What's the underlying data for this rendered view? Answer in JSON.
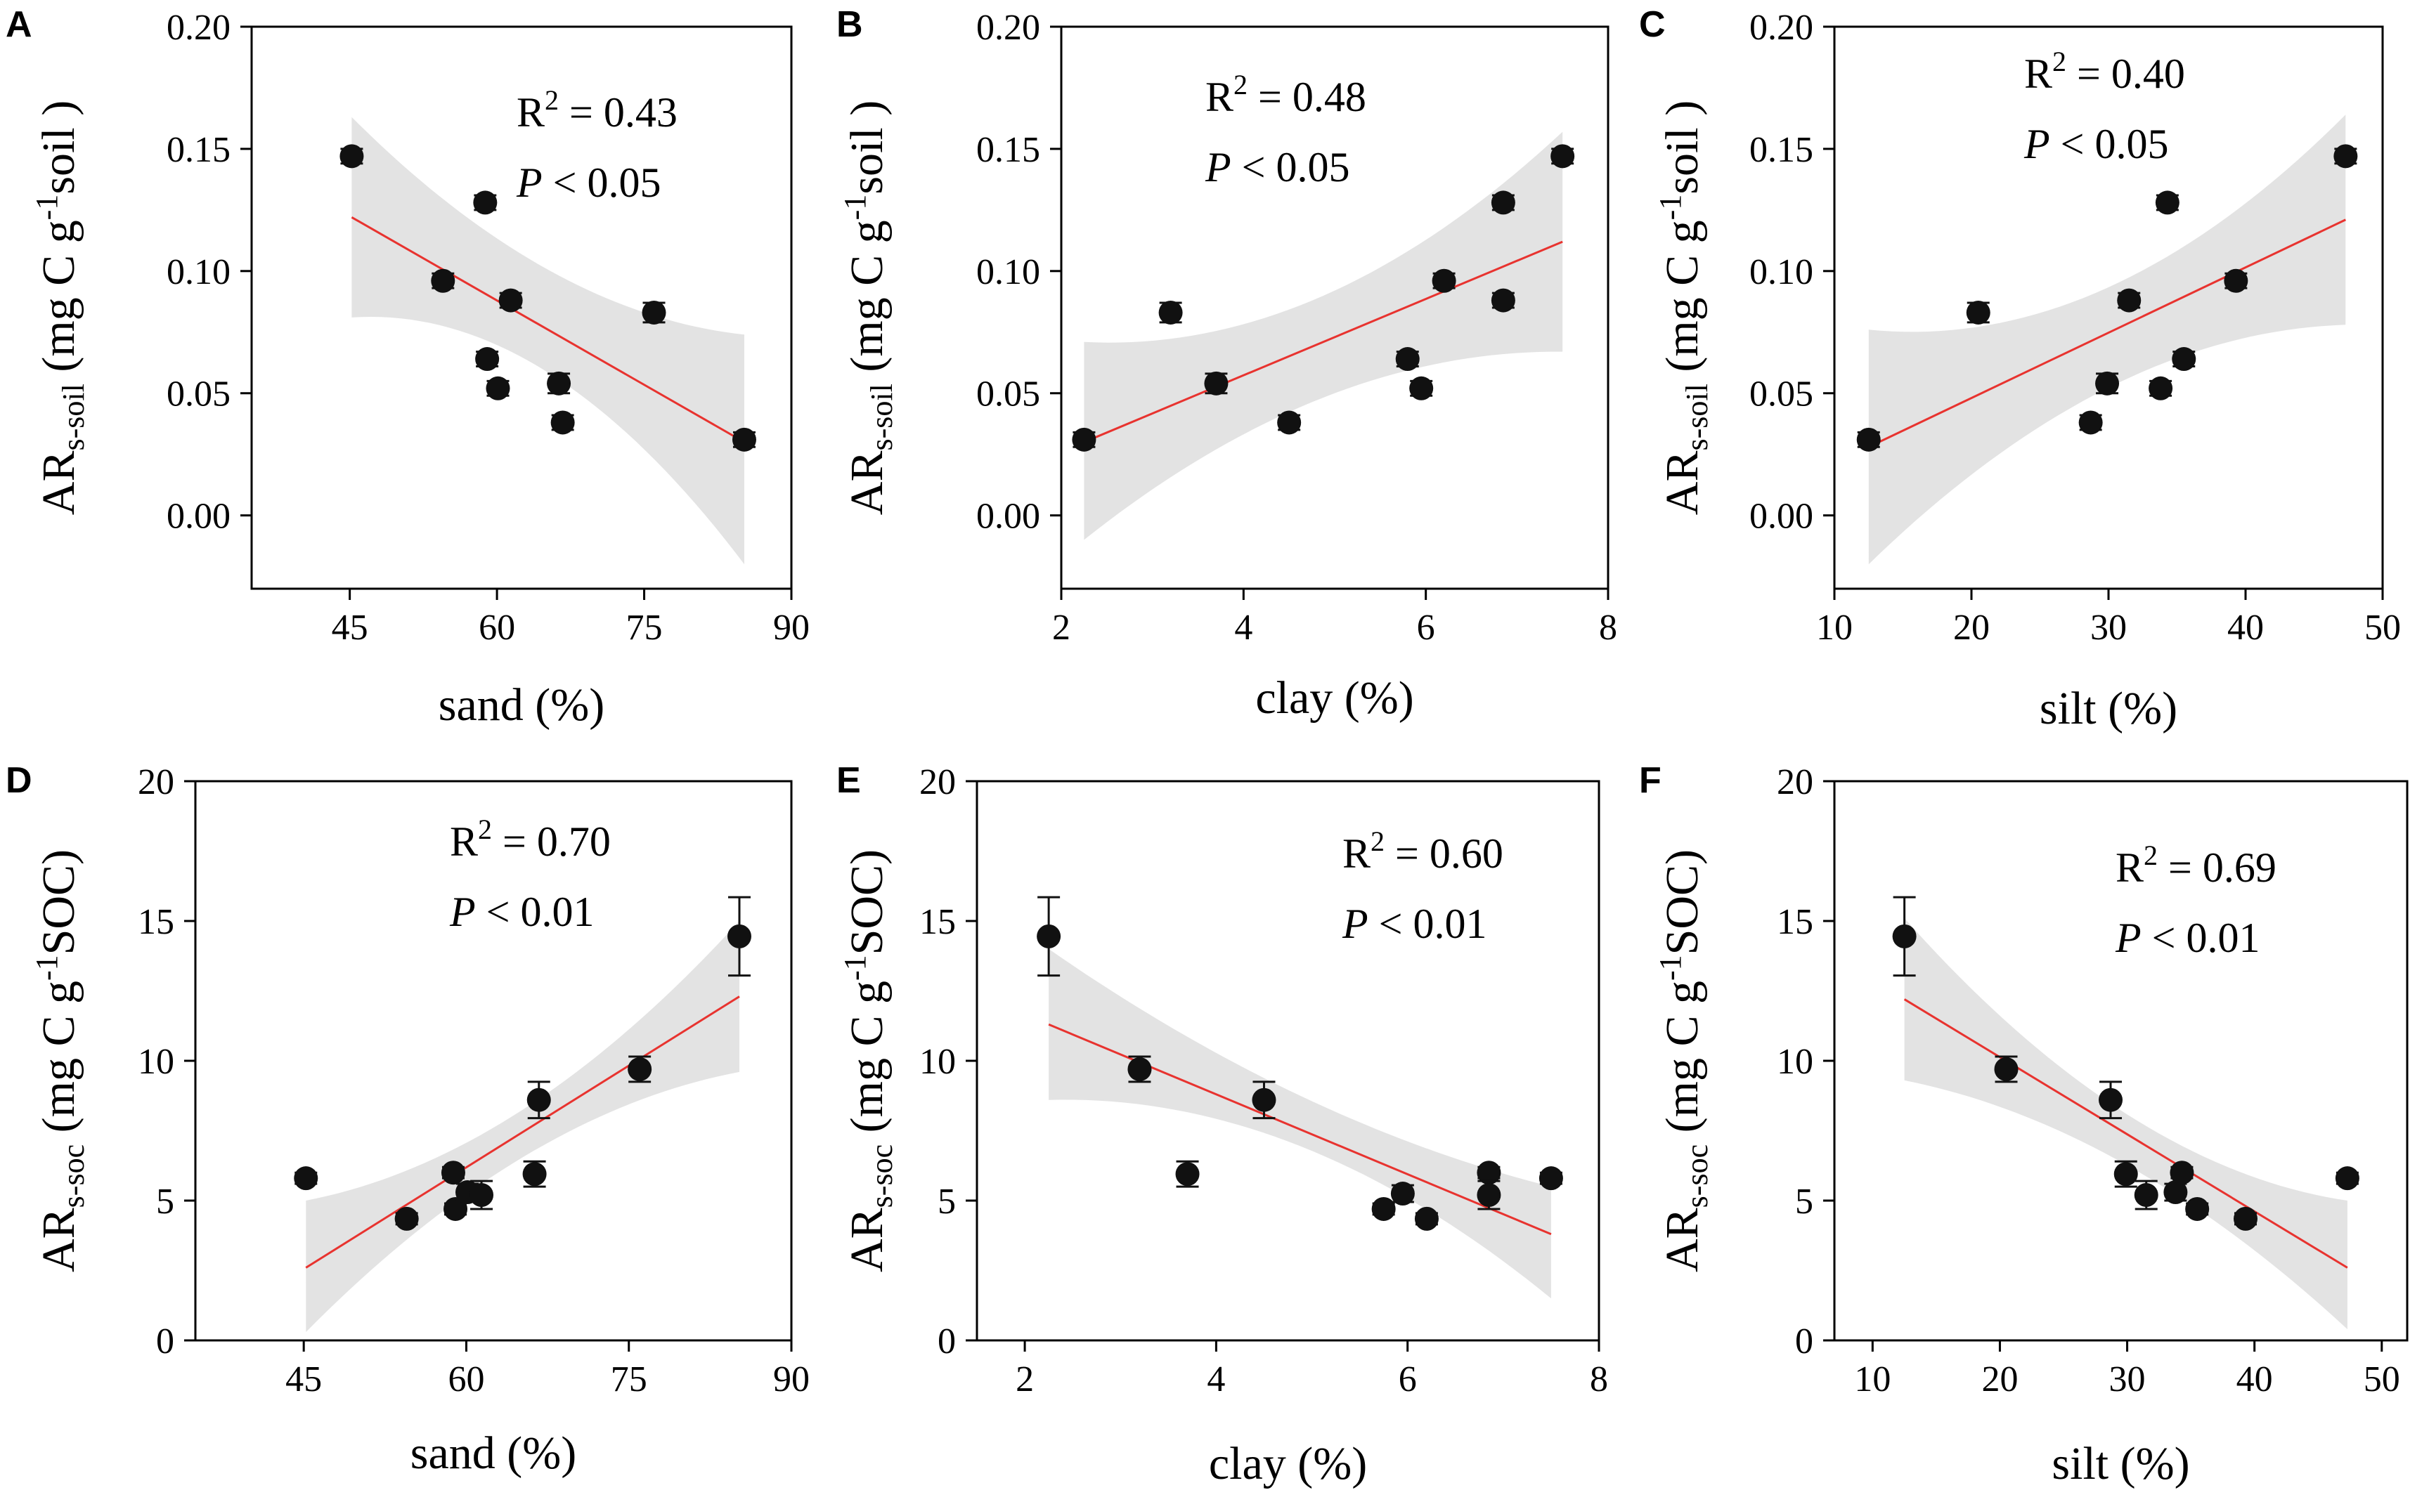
{
  "figure": {
    "title": ""
  },
  "colors": {
    "point": "#111111",
    "fit": "#e8332f",
    "band": "#d9d9d9",
    "axis": "#000000"
  },
  "chart_data": [
    {
      "panel": "A",
      "type": "scatter",
      "xlabel": "sand (%)",
      "ylabel": {
        "base": "AR",
        "sub": "s-soil",
        "unit_pre": " (mg C g",
        "unit_sup": "-1",
        "unit_post": "soil )"
      },
      "xlim": [
        35,
        90
      ],
      "ylim": [
        -0.03,
        0.2
      ],
      "xticks": [
        45,
        60,
        75,
        90
      ],
      "xtick_labels": [
        "45",
        "60",
        "75",
        "90"
      ],
      "yticks": [
        0,
        0.05,
        0.1,
        0.15,
        0.2
      ],
      "ytick_labels": [
        "0.00",
        "0.05",
        "0.10",
        "0.15",
        "0.20"
      ],
      "stats": {
        "r2_prefix": "R",
        "r2_sup": "2",
        "r2_value": " = 0.43",
        "p_symbol": "P",
        "p_value": " < 0.05"
      },
      "points": [
        {
          "x": 45.2,
          "y": 0.147,
          "err": 0.003
        },
        {
          "x": 54.5,
          "y": 0.096,
          "err": 0.003
        },
        {
          "x": 58.8,
          "y": 0.128,
          "err": 0.003
        },
        {
          "x": 59.0,
          "y": 0.064,
          "err": 0.003
        },
        {
          "x": 60.1,
          "y": 0.052,
          "err": 0.003
        },
        {
          "x": 61.4,
          "y": 0.088,
          "err": 0.003
        },
        {
          "x": 66.3,
          "y": 0.054,
          "err": 0.004
        },
        {
          "x": 66.7,
          "y": 0.038,
          "err": 0.003
        },
        {
          "x": 76.0,
          "y": 0.083,
          "err": 0.004
        },
        {
          "x": 85.2,
          "y": 0.031,
          "err": 0.003
        }
      ],
      "fit": {
        "x": [
          45.2,
          85.2
        ],
        "y": [
          0.122,
          0.03
        ]
      },
      "band": {
        "x": [
          45.2,
          65,
          85.2
        ],
        "upper": [
          0.163,
          0.101,
          0.074
        ],
        "lower": [
          0.081,
          0.059,
          -0.02
        ]
      }
    },
    {
      "panel": "B",
      "type": "scatter",
      "xlabel": "clay (%)",
      "ylabel": {
        "base": "AR",
        "sub": "s-soil",
        "unit_pre": " (mg C g",
        "unit_sup": "-1",
        "unit_post": "soil )"
      },
      "xlim": [
        2,
        8
      ],
      "ylim": [
        -0.03,
        0.2
      ],
      "xticks": [
        2,
        4,
        6,
        8
      ],
      "xtick_labels": [
        "2",
        "4",
        "6",
        "8"
      ],
      "yticks": [
        0,
        0.05,
        0.1,
        0.15,
        0.2
      ],
      "ytick_labels": [
        "0.00",
        "0.05",
        "0.10",
        "0.15",
        "0.20"
      ],
      "stats": {
        "r2_prefix": "R",
        "r2_sup": "2",
        "r2_value": " = 0.48",
        "p_symbol": "P",
        "p_value": " < 0.05"
      },
      "points": [
        {
          "x": 2.25,
          "y": 0.031,
          "err": 0.003
        },
        {
          "x": 3.2,
          "y": 0.083,
          "err": 0.004
        },
        {
          "x": 3.7,
          "y": 0.054,
          "err": 0.004
        },
        {
          "x": 4.5,
          "y": 0.038,
          "err": 0.003
        },
        {
          "x": 5.8,
          "y": 0.064,
          "err": 0.003
        },
        {
          "x": 5.95,
          "y": 0.052,
          "err": 0.003
        },
        {
          "x": 6.2,
          "y": 0.096,
          "err": 0.003
        },
        {
          "x": 6.85,
          "y": 0.128,
          "err": 0.003
        },
        {
          "x": 6.85,
          "y": 0.088,
          "err": 0.003
        },
        {
          "x": 7.5,
          "y": 0.147,
          "err": 0.003
        }
      ],
      "fit": {
        "x": [
          2.25,
          7.5
        ],
        "y": [
          0.03,
          0.112
        ]
      },
      "band": {
        "x": [
          2.25,
          5.0,
          7.5
        ],
        "upper": [
          0.071,
          0.092,
          0.157
        ],
        "lower": [
          -0.01,
          0.05,
          0.067
        ]
      }
    },
    {
      "panel": "C",
      "type": "scatter",
      "xlabel": "silt (%)",
      "ylabel": {
        "base": "AR",
        "sub": "s-soil",
        "unit_pre": " (mg C g",
        "unit_sup": "-1",
        "unit_post": "soil )"
      },
      "xlim": [
        10,
        50
      ],
      "ylim": [
        -0.03,
        0.2
      ],
      "xticks": [
        10,
        20,
        30,
        40,
        50
      ],
      "xtick_labels": [
        "10",
        "20",
        "30",
        "40",
        "50"
      ],
      "yticks": [
        0,
        0.05,
        0.1,
        0.15,
        0.2
      ],
      "ytick_labels": [
        "0.00",
        "0.05",
        "0.10",
        "0.15",
        "0.20"
      ],
      "stats": {
        "r2_prefix": "R",
        "r2_sup": "2",
        "r2_value": " = 0.40",
        "p_symbol": "P",
        "p_value": " < 0.05"
      },
      "points": [
        {
          "x": 12.5,
          "y": 0.031,
          "err": 0.003
        },
        {
          "x": 20.5,
          "y": 0.083,
          "err": 0.004
        },
        {
          "x": 28.7,
          "y": 0.038,
          "err": 0.003
        },
        {
          "x": 29.9,
          "y": 0.054,
          "err": 0.004
        },
        {
          "x": 31.5,
          "y": 0.088,
          "err": 0.003
        },
        {
          "x": 33.8,
          "y": 0.052,
          "err": 0.003
        },
        {
          "x": 34.3,
          "y": 0.128,
          "err": 0.003
        },
        {
          "x": 35.5,
          "y": 0.064,
          "err": 0.003
        },
        {
          "x": 39.3,
          "y": 0.096,
          "err": 0.003
        },
        {
          "x": 47.3,
          "y": 0.147,
          "err": 0.003
        }
      ],
      "fit": {
        "x": [
          12.5,
          47.3
        ],
        "y": [
          0.028,
          0.121
        ]
      },
      "band": {
        "x": [
          12.5,
          31.0,
          47.3
        ],
        "upper": [
          0.076,
          0.096,
          0.164
        ],
        "lower": [
          -0.02,
          0.055,
          0.078
        ]
      }
    },
    {
      "panel": "D",
      "type": "scatter",
      "xlabel": "sand (%)",
      "ylabel": {
        "base": "AR",
        "sub": "s-soc",
        "unit_pre": " (mg C g",
        "unit_sup": "-1",
        "unit_post": "SOC)"
      },
      "xlim": [
        35,
        90
      ],
      "ylim": [
        0,
        20
      ],
      "xticks": [
        45,
        60,
        75,
        90
      ],
      "xtick_labels": [
        "45",
        "60",
        "75",
        "90"
      ],
      "yticks": [
        0,
        5,
        10,
        15,
        20
      ],
      "ytick_labels": [
        "0",
        "5",
        "10",
        "15",
        "20"
      ],
      "stats": {
        "r2_prefix": "R",
        "r2_sup": "2",
        "r2_value": " = 0.70",
        "p_symbol": "P",
        "p_value": " < 0.01"
      },
      "points": [
        {
          "x": 45.2,
          "y": 5.8,
          "err": 0.2
        },
        {
          "x": 54.5,
          "y": 4.35,
          "err": 0.2
        },
        {
          "x": 58.8,
          "y": 6.0,
          "err": 0.2
        },
        {
          "x": 59.0,
          "y": 4.7,
          "err": 0.2
        },
        {
          "x": 60.1,
          "y": 5.3,
          "err": 0.3
        },
        {
          "x": 61.4,
          "y": 5.2,
          "err": 0.5
        },
        {
          "x": 66.3,
          "y": 5.95,
          "err": 0.45
        },
        {
          "x": 66.7,
          "y": 8.6,
          "err": 0.65
        },
        {
          "x": 76.0,
          "y": 9.7,
          "err": 0.45
        },
        {
          "x": 85.2,
          "y": 14.45,
          "err": 1.4
        }
      ],
      "fit": {
        "x": [
          45.2,
          85.2
        ],
        "y": [
          2.6,
          12.3
        ]
      },
      "band": {
        "x": [
          45.2,
          65,
          85.2
        ],
        "upper": [
          5.0,
          8.2,
          15.0
        ],
        "lower": [
          0.3,
          6.5,
          9.6
        ]
      }
    },
    {
      "panel": "E",
      "type": "scatter",
      "xlabel": "clay (%)",
      "ylabel": {
        "base": "AR",
        "sub": "s-soc",
        "unit_pre": " (mg C g",
        "unit_sup": "-1",
        "unit_post": "SOC)"
      },
      "xlim": [
        1.5,
        8
      ],
      "ylim": [
        0,
        20
      ],
      "xticks": [
        2,
        4,
        6,
        8
      ],
      "xtick_labels": [
        "2",
        "4",
        "6",
        "8"
      ],
      "yticks": [
        0,
        5,
        10,
        15,
        20
      ],
      "ytick_labels": [
        "0",
        "5",
        "10",
        "15",
        "20"
      ],
      "stats": {
        "r2_prefix": "R",
        "r2_sup": "2",
        "r2_value": " = 0.60",
        "p_symbol": "P",
        "p_value": " < 0.01"
      },
      "points": [
        {
          "x": 2.25,
          "y": 14.45,
          "err": 1.4
        },
        {
          "x": 3.2,
          "y": 9.7,
          "err": 0.45
        },
        {
          "x": 3.7,
          "y": 5.95,
          "err": 0.45
        },
        {
          "x": 4.5,
          "y": 8.6,
          "err": 0.65
        },
        {
          "x": 5.75,
          "y": 4.7,
          "err": 0.2
        },
        {
          "x": 5.95,
          "y": 5.25,
          "err": 0.3
        },
        {
          "x": 6.2,
          "y": 4.35,
          "err": 0.2
        },
        {
          "x": 6.85,
          "y": 6.0,
          "err": 0.2
        },
        {
          "x": 6.85,
          "y": 5.2,
          "err": 0.5
        },
        {
          "x": 7.5,
          "y": 5.8,
          "err": 0.2
        }
      ],
      "fit": {
        "x": [
          2.25,
          7.5
        ],
        "y": [
          11.3,
          3.8
        ]
      },
      "band": {
        "x": [
          2.25,
          5.5,
          7.5
        ],
        "upper": [
          14.0,
          7.8,
          5.5
        ],
        "lower": [
          8.6,
          6.0,
          1.5
        ]
      }
    },
    {
      "panel": "F",
      "type": "scatter",
      "xlabel": "silt (%)",
      "ylabel": {
        "base": "AR",
        "sub": "s-soc",
        "unit_pre": " (mg C g",
        "unit_sup": "-1",
        "unit_post": "SOC)"
      },
      "xlim": [
        7,
        52
      ],
      "ylim": [
        0,
        20
      ],
      "xticks": [
        10,
        20,
        30,
        40,
        50
      ],
      "xtick_labels": [
        "10",
        "20",
        "30",
        "40",
        "50"
      ],
      "yticks": [
        0,
        5,
        10,
        15,
        20
      ],
      "ytick_labels": [
        "0",
        "5",
        "10",
        "15",
        "20"
      ],
      "stats": {
        "r2_prefix": "R",
        "r2_sup": "2",
        "r2_value": " = 0.69",
        "p_symbol": "P",
        "p_value": " < 0.01"
      },
      "points": [
        {
          "x": 12.5,
          "y": 14.45,
          "err": 1.4
        },
        {
          "x": 20.5,
          "y": 9.7,
          "err": 0.45
        },
        {
          "x": 28.7,
          "y": 8.6,
          "err": 0.65
        },
        {
          "x": 29.9,
          "y": 5.95,
          "err": 0.45
        },
        {
          "x": 31.5,
          "y": 5.2,
          "err": 0.5
        },
        {
          "x": 33.8,
          "y": 5.3,
          "err": 0.3
        },
        {
          "x": 34.3,
          "y": 6.0,
          "err": 0.2
        },
        {
          "x": 35.5,
          "y": 4.7,
          "err": 0.2
        },
        {
          "x": 39.3,
          "y": 4.35,
          "err": 0.2
        },
        {
          "x": 47.3,
          "y": 5.8,
          "err": 0.2
        }
      ],
      "fit": {
        "x": [
          12.5,
          47.3
        ],
        "y": [
          12.2,
          2.6
        ]
      },
      "band": {
        "x": [
          12.5,
          31.0,
          47.3
        ],
        "upper": [
          15.1,
          7.8,
          5.0
        ],
        "lower": [
          9.3,
          6.0,
          0.4
        ]
      }
    }
  ]
}
